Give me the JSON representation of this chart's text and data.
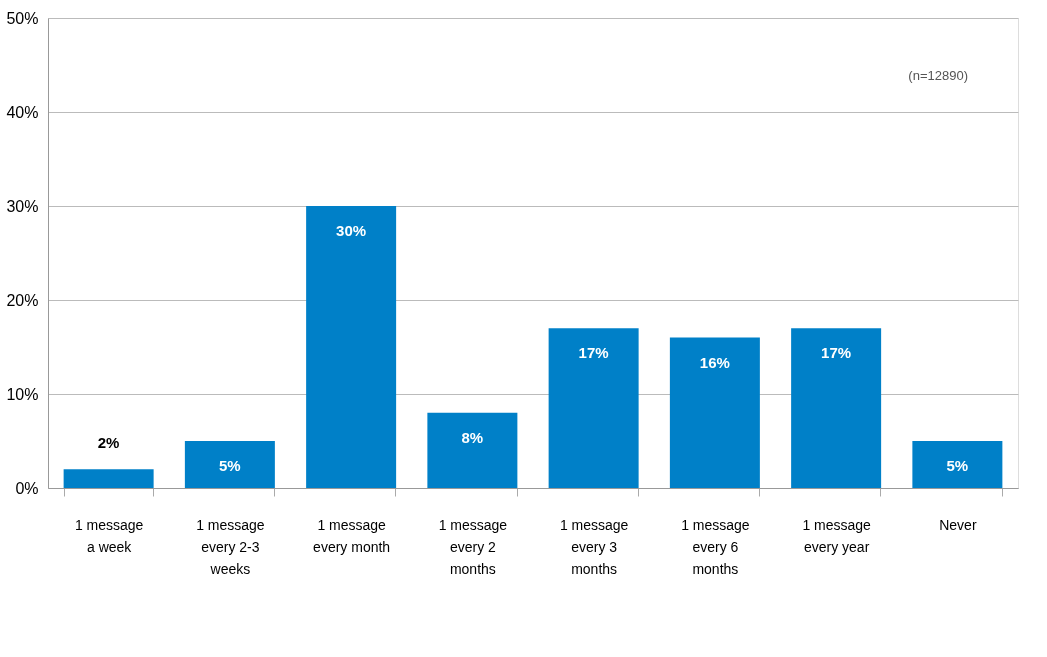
{
  "chart_data": {
    "type": "bar",
    "categories": [
      "1 message\na week",
      "1 message\nevery 2-3\nweeks",
      "1 message\nevery month",
      "1 message\nevery 2\nmonths",
      "1 message\nevery 3\nmonths",
      "1 message\nevery 6\nmonths",
      "1 message\nevery year",
      "Never"
    ],
    "values": [
      2,
      5,
      30,
      8,
      17,
      16,
      17,
      5
    ],
    "value_labels": [
      "2%",
      "5%",
      "30%",
      "8%",
      "17%",
      "16%",
      "17%",
      "5%"
    ],
    "color": "#0080c8",
    "ylim": [
      0,
      50
    ],
    "yticks": [
      {
        "value": 0,
        "label": "0%"
      },
      {
        "value": 10,
        "label": "10%"
      },
      {
        "value": 20,
        "label": "20%"
      },
      {
        "value": 30,
        "label": "30%"
      },
      {
        "value": 40,
        "label": "40%"
      },
      {
        "value": 50,
        "label": "50%"
      }
    ],
    "grid": "y",
    "annotations": [
      "(n=12890)"
    ]
  }
}
